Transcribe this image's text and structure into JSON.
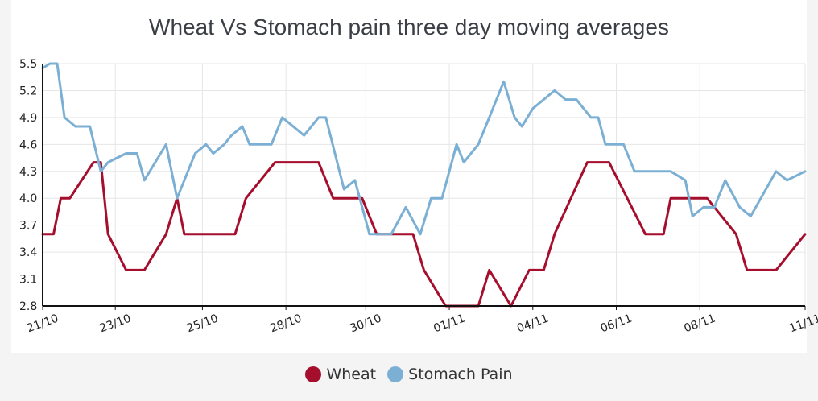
{
  "chart_data": {
    "type": "line",
    "title": "Wheat Vs Stomach pain three day moving averages",
    "xlabel": "",
    "ylabel": "",
    "ylim": [
      2.8,
      5.5
    ],
    "yticks": [
      "2.8",
      "3.1",
      "3.4",
      "3.7",
      "4.0",
      "4.3",
      "4.6",
      "4.9",
      "5.2",
      "5.5"
    ],
    "xlim": [
      0,
      21
    ],
    "xticks": [
      {
        "label": "21/10",
        "x": 0
      },
      {
        "label": "23/10",
        "x": 2
      },
      {
        "label": "25/10",
        "x": 4.4
      },
      {
        "label": "28/10",
        "x": 6.7
      },
      {
        "label": "30/10",
        "x": 8.9
      },
      {
        "label": "01/11",
        "x": 11.2
      },
      {
        "label": "04/11",
        "x": 13.5
      },
      {
        "label": "06/11",
        "x": 15.8
      },
      {
        "label": "08/11",
        "x": 18.1
      },
      {
        "label": "11/11",
        "x": 21
      }
    ],
    "grid": true,
    "legend_position": "bottom",
    "series": [
      {
        "name": "Wheat",
        "color": "#a50f2d",
        "x": [
          0,
          0.3,
          0.5,
          0.75,
          1.4,
          1.6,
          1.8,
          2.3,
          2.8,
          3.4,
          3.7,
          3.9,
          4.6,
          5.3,
          5.6,
          6.4,
          6.8,
          7.6,
          8.0,
          8.8,
          9.2,
          10.0,
          10.2,
          10.5,
          11.1,
          11.5,
          12.0,
          12.3,
          12.9,
          13.4,
          13.8,
          14.1,
          15.0,
          15.2,
          15.6,
          16.6,
          17.1,
          17.3,
          17.8,
          18.3,
          19.1,
          19.4,
          20.2,
          21.0
        ],
        "values": [
          3.6,
          3.6,
          4.0,
          4.0,
          4.4,
          4.4,
          3.6,
          3.2,
          3.2,
          3.6,
          4.0,
          3.6,
          3.6,
          3.6,
          4.0,
          4.4,
          4.4,
          4.4,
          4.0,
          4.0,
          3.6,
          3.6,
          3.6,
          3.2,
          2.8,
          2.8,
          2.8,
          3.2,
          2.8,
          3.2,
          3.2,
          3.6,
          4.4,
          4.4,
          4.4,
          3.6,
          3.6,
          4.0,
          4.0,
          4.0,
          3.6,
          3.2,
          3.2,
          3.6
        ],
        "note": ""
      },
      {
        "name": "Stomach Pain",
        "color": "#7bafd4",
        "x": [
          0,
          0.2,
          0.4,
          0.6,
          0.9,
          1.3,
          1.6,
          1.8,
          2.3,
          2.6,
          2.8,
          3.4,
          3.7,
          4.2,
          4.5,
          4.7,
          5.0,
          5.2,
          5.5,
          5.7,
          6.1,
          6.3,
          6.6,
          7.2,
          7.6,
          7.8,
          8.3,
          8.6,
          9.0,
          9.4,
          9.6,
          10.0,
          10.4,
          10.7,
          11.0,
          11.4,
          11.6,
          12.0,
          12.3,
          12.7,
          13.0,
          13.2,
          13.5,
          13.8,
          14.1,
          14.4,
          14.7,
          15.1,
          15.3,
          15.5,
          16.0,
          16.3,
          16.6,
          17.3,
          17.7,
          17.9,
          18.2,
          18.5,
          18.8,
          19.2,
          19.5,
          20.2,
          20.5,
          21.0
        ],
        "values": [
          5.45,
          5.5,
          5.5,
          4.9,
          4.8,
          4.8,
          4.3,
          4.4,
          4.5,
          4.5,
          4.2,
          4.6,
          4.0,
          4.5,
          4.6,
          4.5,
          4.6,
          4.7,
          4.8,
          4.6,
          4.6,
          4.6,
          4.9,
          4.7,
          4.9,
          4.9,
          4.1,
          4.2,
          3.6,
          3.6,
          3.6,
          3.9,
          3.6,
          4.0,
          4.0,
          4.6,
          4.4,
          4.6,
          4.9,
          5.3,
          4.9,
          4.8,
          5.0,
          5.1,
          5.2,
          5.1,
          5.1,
          4.9,
          4.9,
          4.6,
          4.6,
          4.3,
          4.3,
          4.3,
          4.2,
          3.8,
          3.9,
          3.9,
          4.2,
          3.9,
          3.8,
          4.3,
          4.2,
          4.3
        ]
      }
    ]
  }
}
